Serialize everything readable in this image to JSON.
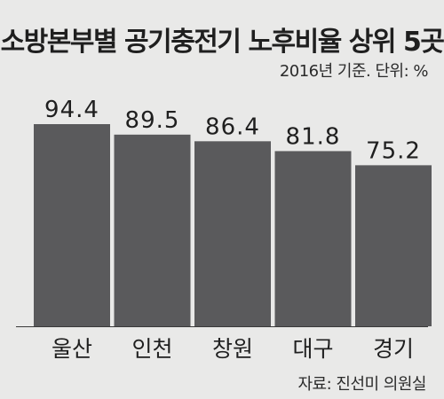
{
  "chart_data": {
    "type": "bar",
    "title": "소방본부별 공기충전기 노후비율 상위 5곳",
    "subtitle": "2016년 기준. 단위: %",
    "source": "자료: 진선미 의원실",
    "categories": [
      "울산",
      "인천",
      "창원",
      "대구",
      "경기"
    ],
    "values": [
      94.4,
      89.5,
      86.4,
      81.8,
      75.2
    ],
    "value_labels": [
      "94.4",
      "89.5",
      "86.4",
      "81.8",
      "75.2"
    ],
    "xlabel": "",
    "ylabel": "",
    "ylim": [
      0,
      100
    ],
    "grid": false,
    "colors": {
      "bar": "#5a5a5c",
      "background": "#e9e9e8",
      "axis": "#3a3a3a"
    }
  }
}
